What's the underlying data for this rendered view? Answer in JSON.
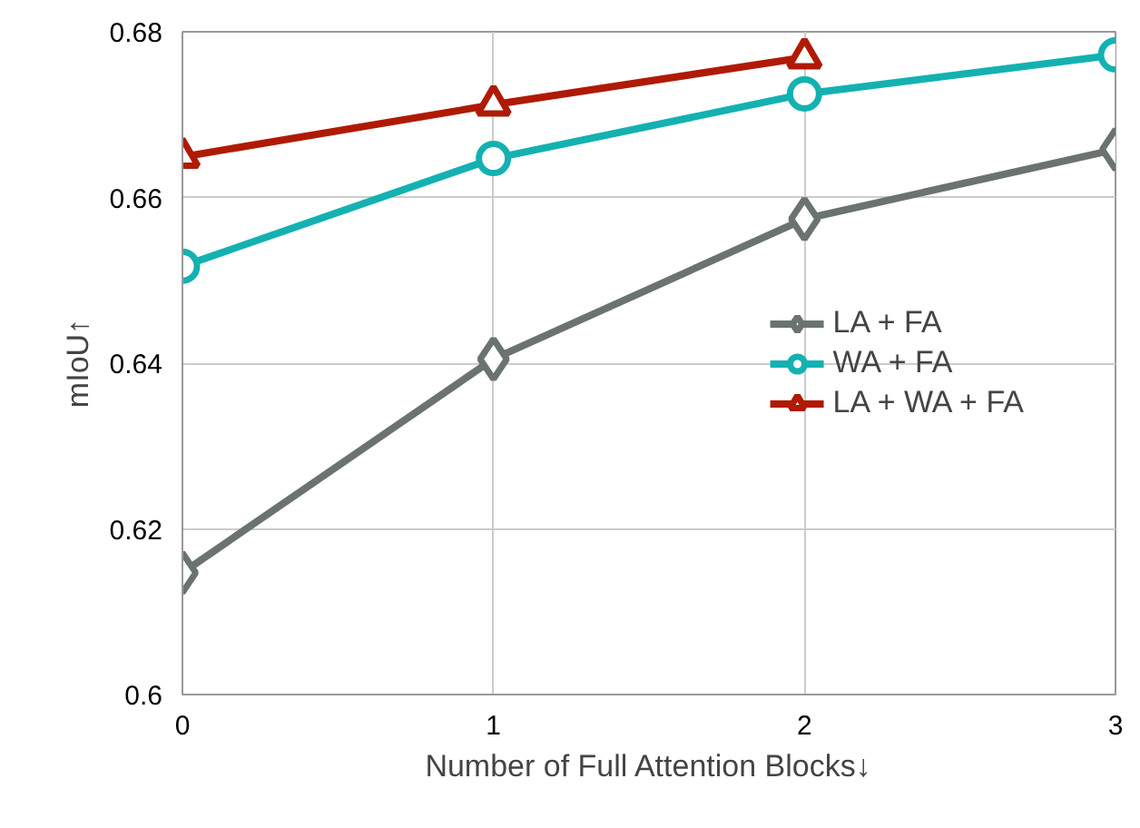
{
  "chart_data": {
    "type": "line",
    "xlabel": "Number of Full Attention Blocks↓",
    "ylabel": "mIoU↑",
    "x": [
      0,
      1,
      2,
      3
    ],
    "series": [
      {
        "name": "LA + FA",
        "color": "#6b7370",
        "marker": "diamond",
        "values": [
          0.6147,
          0.6405,
          0.6574,
          0.6658
        ]
      },
      {
        "name": "WA + FA",
        "color": "#14b1b1",
        "marker": "circle",
        "values": [
          0.6517,
          0.6647,
          0.6725,
          0.6772
        ]
      },
      {
        "name": "LA + WA + FA",
        "color": "#b01a05",
        "marker": "triangle",
        "values": [
          0.6649,
          0.6712,
          0.6769,
          null
        ]
      }
    ],
    "xlim": [
      0,
      3
    ],
    "xticks": [
      0,
      1,
      2,
      3
    ],
    "ylim": [
      0.6,
      0.68
    ],
    "yticks": [
      0.6,
      0.62,
      0.64,
      0.66,
      0.68
    ],
    "grid": true,
    "legend": "right",
    "line_style": "solid"
  }
}
